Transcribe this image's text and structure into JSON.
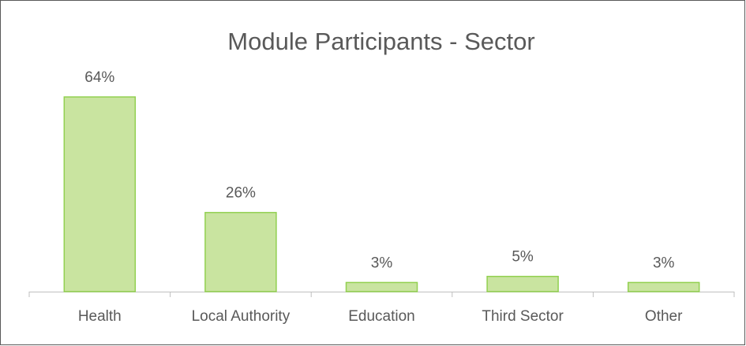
{
  "chart_data": {
    "type": "bar",
    "title": "Module Participants - Sector",
    "categories": [
      "Health",
      "Local Authority",
      "Education",
      "Third Sector",
      "Other"
    ],
    "values": [
      64,
      26,
      3,
      5,
      3
    ],
    "value_labels": [
      "64%",
      "26%",
      "3%",
      "5%",
      "3%"
    ],
    "color": "#c9e4a0"
  }
}
